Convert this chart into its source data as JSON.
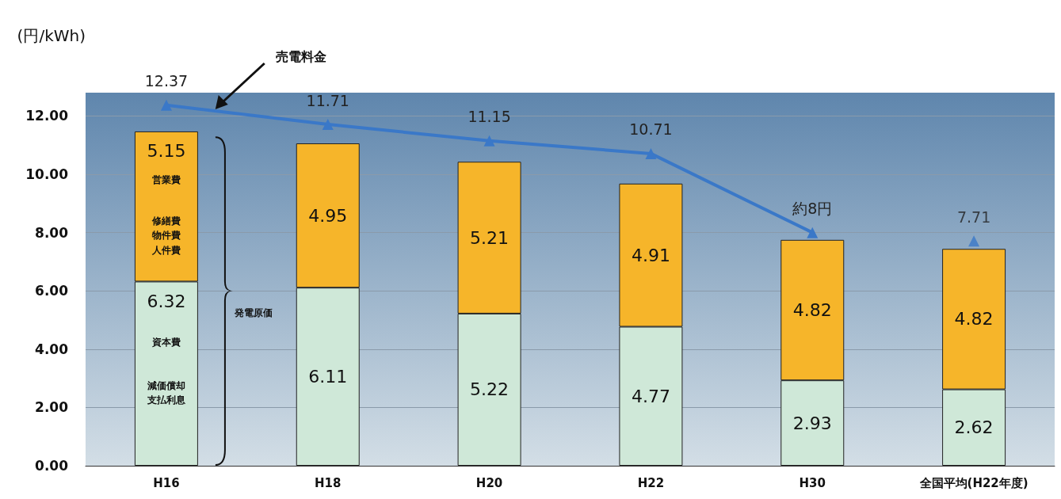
{
  "chart_data": {
    "type": "bar",
    "stacked": true,
    "ylabel": "(円/kWh)",
    "categories": [
      "H16",
      "H18",
      "H20",
      "H22",
      "H30",
      "全国平均(H22年度)"
    ],
    "series": [
      {
        "color": "#cfe8d8",
        "values": [
          6.32,
          6.11,
          5.22,
          4.77,
          2.93,
          2.62
        ]
      },
      {
        "color": "#f6b52a",
        "values": [
          5.15,
          4.95,
          5.21,
          4.91,
          4.82,
          4.82
        ]
      },
      {
        "type": "line",
        "color": "#3a78c8",
        "values": [
          12.37,
          11.71,
          11.15,
          10.71,
          8,
          null
        ],
        "value_labels": [
          "12.37",
          "11.71",
          "11.15",
          "10.71",
          "約8円",
          null
        ]
      },
      {
        "type": "scatter",
        "color": "#3a78c8",
        "values": [
          null,
          null,
          null,
          null,
          null,
          7.71
        ],
        "value_labels": [
          null,
          null,
          null,
          null,
          null,
          "7.71"
        ]
      }
    ],
    "data_labels": true,
    "marker": "triangle",
    "grid": "y",
    "ylim": [
      0,
      12.8
    ],
    "yticks": [
      {
        "value": 0,
        "label": "0.00"
      },
      {
        "value": 2,
        "label": "2.00"
      },
      {
        "value": 4,
        "label": "4.00"
      },
      {
        "value": 6,
        "label": "6.00"
      },
      {
        "value": 8,
        "label": "8.00"
      },
      {
        "value": 10,
        "label": "10.00"
      },
      {
        "value": 12,
        "label": "12.00"
      }
    ],
    "annotations": [
      "売電料金",
      "発電原価",
      "営業費",
      "修繕費",
      "物件費",
      "人件費",
      "資本費",
      "減価償却",
      "支払利息"
    ]
  }
}
